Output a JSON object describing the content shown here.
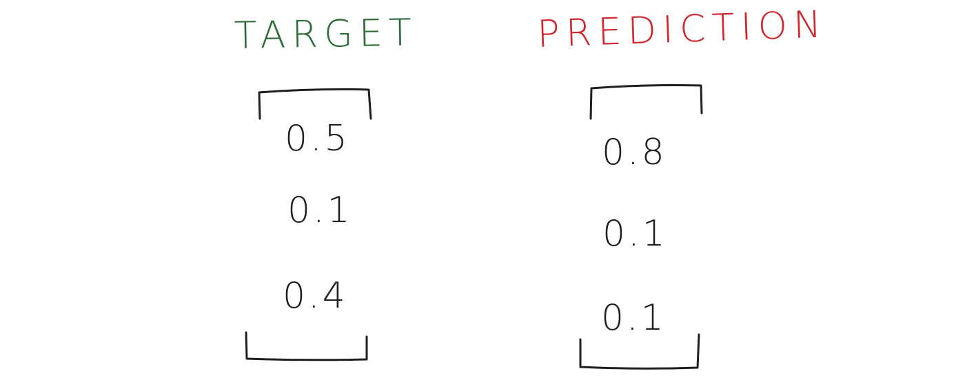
{
  "target": {
    "title": "TARGET",
    "color": "#2f6b36",
    "values": [
      "0.5",
      "0.1",
      "0.4"
    ]
  },
  "prediction": {
    "title": "PREDICTION",
    "color": "#d0262e",
    "values": [
      "0.8",
      "0.1",
      "0.1"
    ]
  },
  "ink_color": "#1f1f1f"
}
